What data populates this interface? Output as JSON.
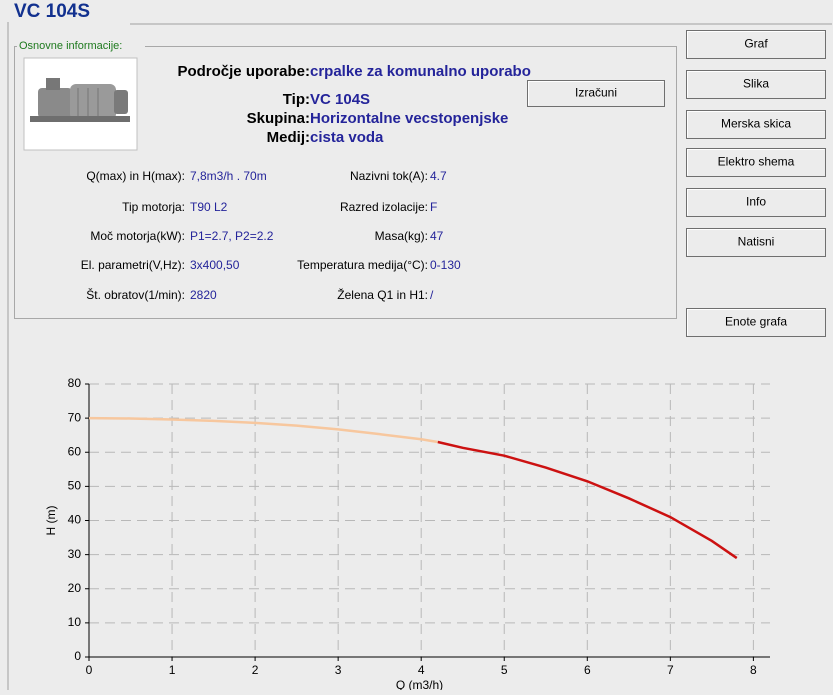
{
  "header": {
    "title": "VC 104S"
  },
  "info_group": {
    "title": "Osnovne informacije:",
    "summary": [
      {
        "label": "Področje uporabe:",
        "value": "crpalke za komunalno uporabo"
      },
      {
        "label": "Tip:",
        "value": "VC 104S"
      },
      {
        "label": "Skupina:",
        "value": "Horizontalne vecstopenjske"
      },
      {
        "label": "Medij:",
        "value": "cista voda"
      }
    ],
    "details_left": [
      {
        "label": "Q(max) in H(max):",
        "value": "7,8m3/h  .  70m"
      },
      {
        "label": "Tip motorja:",
        "value": "T90 L2"
      },
      {
        "label": "Moč motorja(kW):",
        "value": "P1=2.7, P2=2.2"
      },
      {
        "label": "El. parametri(V,Hz):",
        "value": "3x400,50"
      },
      {
        "label": "Št. obratov(1/min):",
        "value": "2820"
      }
    ],
    "details_right": [
      {
        "label": "Nazivni tok(A):",
        "value": "4.7"
      },
      {
        "label": "Razred izolacije:",
        "value": "F"
      },
      {
        "label": "Masa(kg):",
        "value": "47"
      },
      {
        "label": "Temperatura medija(°C):",
        "value": "0-130"
      },
      {
        "label": "Želena Q1 in H1:",
        "value": "/"
      }
    ]
  },
  "buttons": {
    "calculate": "Izračuni",
    "side": [
      "Graf",
      "Slika",
      "Merska skica",
      "Elektro shema",
      "Info",
      "Natisni"
    ],
    "units": "Enote grafa"
  },
  "chart_data": {
    "type": "line",
    "x_label": "Q (m3/h)",
    "y_label": "H (m)",
    "xlim": [
      0,
      8.2
    ],
    "ylim": [
      0,
      80
    ],
    "xticks": [
      0,
      1,
      2,
      3,
      4,
      5,
      6,
      7,
      8
    ],
    "yticks": [
      0,
      10,
      20,
      30,
      40,
      50,
      60,
      70,
      80
    ],
    "grid": true,
    "series": [
      {
        "color": "#f7c79e",
        "x": [
          0,
          0.5,
          1,
          1.5,
          2,
          2.5,
          3,
          3.5,
          4,
          4.2
        ],
        "values": [
          70,
          69.9,
          69.6,
          69.2,
          68.6,
          67.8,
          66.7,
          65.3,
          63.8,
          63
        ]
      },
      {
        "color": "#cc1111",
        "x": [
          4.2,
          4.5,
          5,
          5.5,
          6,
          6.5,
          7,
          7.5,
          7.8
        ],
        "values": [
          63,
          61.3,
          59,
          55.5,
          51.5,
          46.5,
          41,
          34,
          29
        ]
      }
    ]
  }
}
